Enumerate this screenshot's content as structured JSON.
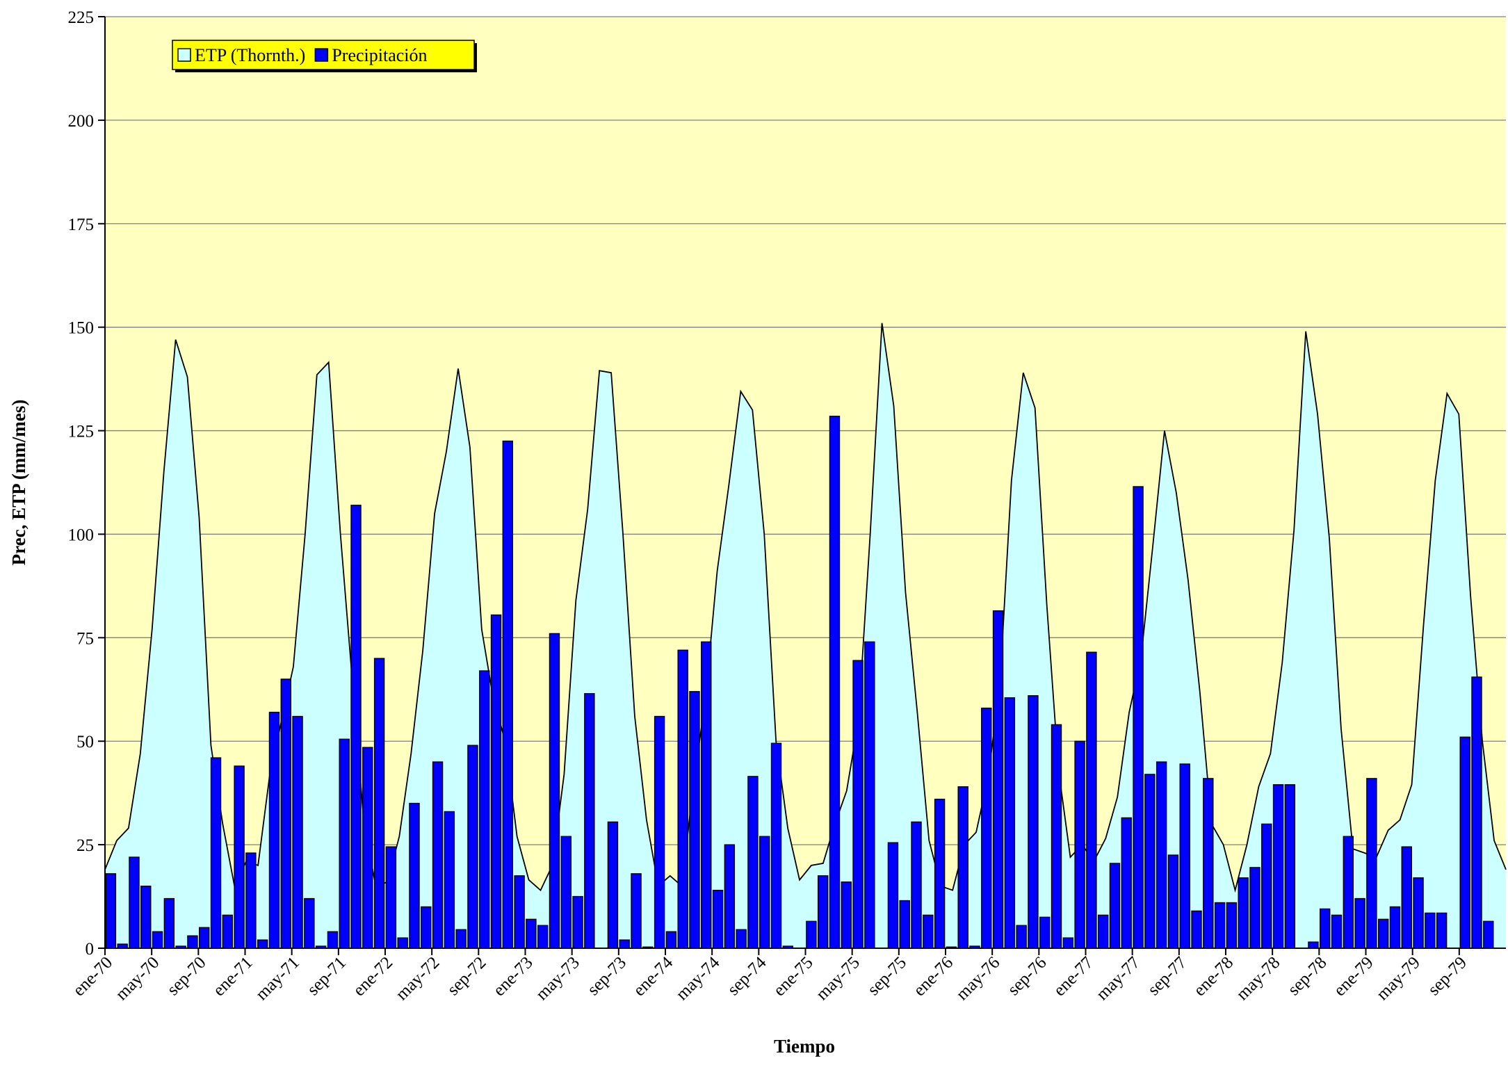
{
  "chart_data": {
    "type": "bar",
    "y_label": "Prec, ETP (mm/mes)",
    "x_label": "Tiempo",
    "legend_position": "top-left",
    "grid": true,
    "ylim": [
      0,
      225
    ],
    "yticks": [
      0,
      25,
      50,
      75,
      100,
      125,
      150,
      175,
      200,
      225
    ],
    "categories": [
      "ene-70",
      null,
      null,
      null,
      "may-70",
      null,
      null,
      null,
      "sep-70",
      null,
      null,
      null,
      "ene-71",
      null,
      null,
      null,
      "may-71",
      null,
      null,
      null,
      "sep-71",
      null,
      null,
      null,
      "ene-72",
      null,
      null,
      null,
      "may-72",
      null,
      null,
      null,
      "sep-72",
      null,
      null,
      null,
      "ene-73",
      null,
      null,
      null,
      "may-73",
      null,
      null,
      null,
      "sep-73",
      null,
      null,
      null,
      "ene-74",
      null,
      null,
      null,
      "may-74",
      null,
      null,
      null,
      "sep-74",
      null,
      null,
      null,
      "ene-75",
      null,
      null,
      null,
      "may-75",
      null,
      null,
      null,
      "sep-75",
      null,
      null,
      null,
      "ene-76",
      null,
      null,
      null,
      "may-76",
      null,
      null,
      null,
      "sep-76",
      null,
      null,
      null,
      "ene-77",
      null,
      null,
      null,
      "may-77",
      null,
      null,
      null,
      "sep-77",
      null,
      null,
      null,
      "ene-78",
      null,
      null,
      null,
      "may-78",
      null,
      null,
      null,
      "sep-78",
      null,
      null,
      null,
      "ene-79",
      null,
      null,
      null,
      "may-79",
      null,
      null,
      null,
      "sep-79",
      null,
      null,
      null
    ],
    "series": [
      {
        "name": "ETP (Thornth.)",
        "type": "area",
        "color": "#ccffff",
        "values": [
          19,
          26,
          29,
          47,
          77,
          115,
          147,
          138,
          104,
          49,
          30,
          15,
          21,
          20,
          42,
          55,
          68,
          100,
          138.5,
          141.5,
          100,
          65,
          30,
          15,
          16,
          27,
          47,
          72,
          105,
          120,
          140,
          121,
          77,
          60,
          50,
          27,
          16.5,
          14,
          20,
          42,
          84,
          106,
          139.5,
          139,
          100,
          56,
          31,
          15,
          17.5,
          15,
          40,
          60,
          91,
          112,
          134.5,
          130,
          100,
          50,
          29,
          16.5,
          20,
          20.5,
          30,
          38,
          55,
          100,
          151,
          131,
          86,
          57,
          26,
          15,
          14,
          25,
          28,
          41,
          63,
          113,
          139,
          130.5,
          83,
          43,
          22,
          25,
          21,
          26.5,
          36.5,
          57,
          70,
          97,
          125,
          110,
          89,
          62,
          30,
          25,
          14,
          25,
          39,
          47,
          69,
          101,
          149,
          129,
          99,
          53,
          24,
          23,
          22,
          28.5,
          31,
          39.5,
          78,
          113,
          134,
          129,
          85,
          50,
          26,
          19
        ]
      },
      {
        "name": "Precipitación",
        "type": "bar",
        "color": "#0000ff",
        "values": [
          18,
          1,
          22,
          15,
          4,
          12,
          0.5,
          3,
          5,
          46,
          8,
          44,
          23,
          2,
          57,
          65,
          56,
          12,
          0.5,
          4,
          50.5,
          107,
          48.5,
          70,
          24.5,
          2.5,
          35,
          10,
          45,
          33,
          4.5,
          49,
          67,
          80.5,
          122.5,
          17.5,
          7,
          5.5,
          76,
          27,
          12.5,
          61.5,
          0,
          30.5,
          2,
          18,
          0.3,
          56,
          4,
          72,
          62,
          74,
          14,
          25,
          4.5,
          41.5,
          27,
          49.5,
          0.5,
          0,
          6.5,
          17.5,
          128.5,
          16,
          69.5,
          74,
          0,
          25.5,
          11.5,
          30.5,
          8,
          36,
          0.3,
          39,
          0.5,
          58,
          81.5,
          60.5,
          5.5,
          61,
          7.5,
          54,
          2.5,
          50,
          71.5,
          8,
          20.5,
          31.5,
          111.5,
          42,
          45,
          22.5,
          44.5,
          9,
          41,
          11,
          11,
          17,
          19.5,
          30,
          39.5,
          39.5,
          0,
          1.5,
          9.5,
          8,
          27,
          12,
          41,
          7,
          10,
          24.5,
          17,
          8.5,
          8.5,
          0,
          51,
          65.5,
          6.5,
          0
        ]
      }
    ]
  }
}
